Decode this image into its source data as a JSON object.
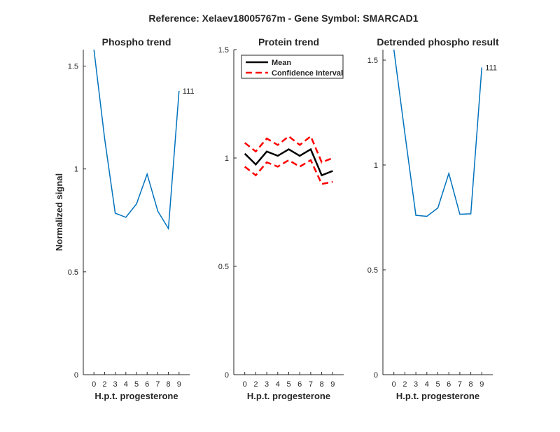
{
  "figure": {
    "suptitle": "Reference:  Xelaev18005767m - Gene Symbol:  SMARCAD1"
  },
  "chart_data": [
    {
      "type": "line",
      "title": "Phospho trend",
      "xlabel": "H.p.t. progesterone",
      "ylabel": "Normalized signal",
      "categories": [
        "0",
        "2",
        "3",
        "4",
        "5",
        "6",
        "7",
        "8",
        "9"
      ],
      "ylim": [
        0,
        1.58
      ],
      "yticks": [
        "0",
        "0.5",
        "1",
        "1.5"
      ],
      "series": [
        {
          "values": [
            1.58,
            1.15,
            0.785,
            0.765,
            0.83,
            0.975,
            0.795,
            0.71,
            1.38
          ]
        }
      ],
      "annotation": "111",
      "color": "#0072BD",
      "grid": false
    },
    {
      "type": "line",
      "title": "Protein trend",
      "xlabel": "H.p.t. progesterone",
      "ylabel": "",
      "categories": [
        "0",
        "2",
        "3",
        "4",
        "5",
        "6",
        "7",
        "8",
        "9"
      ],
      "ylim": [
        0,
        1.5
      ],
      "yticks": [
        "0",
        "0.5",
        "1",
        "1.5"
      ],
      "series": [
        {
          "name": "Mean",
          "values": [
            1.02,
            0.97,
            1.03,
            1.01,
            1.04,
            1.01,
            1.04,
            0.92,
            0.94
          ],
          "color": "#000000",
          "dash": "solid"
        },
        {
          "name": "Confidence Interval",
          "values": [
            1.07,
            1.03,
            1.09,
            1.06,
            1.1,
            1.06,
            1.1,
            0.98,
            1.0
          ],
          "color": "#FF0000",
          "dash": "dashed"
        },
        {
          "name": "",
          "values": [
            0.96,
            0.92,
            0.98,
            0.96,
            0.99,
            0.96,
            0.99,
            0.88,
            0.89
          ],
          "color": "#FF0000",
          "dash": "dashed"
        }
      ],
      "legend": {
        "placement": "top-left",
        "entries": [
          "Mean",
          "Confidence Interval"
        ]
      },
      "grid": false
    },
    {
      "type": "line",
      "title": "Detrended phospho result",
      "xlabel": "H.p.t. progesterone",
      "ylabel": "",
      "categories": [
        "0",
        "2",
        "3",
        "4",
        "5",
        "6",
        "7",
        "8",
        "9"
      ],
      "ylim": [
        0,
        1.55
      ],
      "yticks": [
        "0",
        "0.5",
        "1",
        "1.5"
      ],
      "series": [
        {
          "values": [
            1.55,
            1.15,
            0.76,
            0.755,
            0.795,
            0.96,
            0.765,
            0.767,
            1.465
          ]
        }
      ],
      "annotation": "111",
      "color": "#0072BD",
      "grid": false
    }
  ]
}
